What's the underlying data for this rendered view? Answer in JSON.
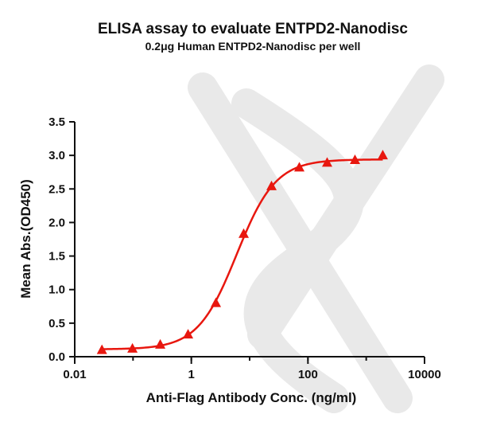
{
  "chart_data": {
    "type": "scatter",
    "title": "ELISA assay to evaluate ENTPD2-Nanodisc",
    "subtitle": "0.2μg Human ENTPD2-Nanodisc per well",
    "xlabel": "Anti-Flag Antibody Conc. (ng/ml)",
    "ylabel": "Mean Abs.(OD450)",
    "x_scale": "log",
    "xlim": [
      0.01,
      10000
    ],
    "ylim": [
      0,
      3.5
    ],
    "x_ticks": [
      0.01,
      1,
      100,
      10000
    ],
    "x_tick_labels": [
      "0.01",
      "1",
      "100",
      "10000"
    ],
    "y_ticks": [
      0,
      0.5,
      1.0,
      1.5,
      2.0,
      2.5,
      3.0,
      3.5
    ],
    "y_tick_labels": [
      "0.0",
      "0.5",
      "1.0",
      "1.5",
      "2.0",
      "2.5",
      "3.0",
      "3.5"
    ],
    "grid": false,
    "legend": "none",
    "marker": "triangle",
    "color": "#e8170f",
    "series": [
      {
        "x": [
          0.0293,
          0.0977,
          0.293,
          0.8789,
          2.637,
          7.91,
          23.73,
          71.19,
          213.6,
          640.7,
          1922
        ],
        "y": [
          0.1,
          0.12,
          0.18,
          0.33,
          0.8,
          1.83,
          2.54,
          2.82,
          2.89,
          2.93,
          3.0
        ]
      }
    ],
    "fit": {
      "model": "4PL",
      "bottom": 0.11,
      "top": 2.94,
      "ec50": 6.0,
      "hill": 1.3
    }
  }
}
